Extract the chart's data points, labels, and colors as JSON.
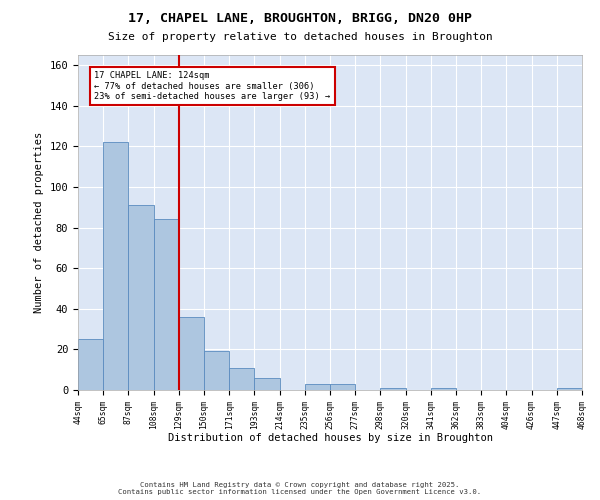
{
  "title_line1": "17, CHAPEL LANE, BROUGHTON, BRIGG, DN20 0HP",
  "title_line2": "Size of property relative to detached houses in Broughton",
  "xlabel": "Distribution of detached houses by size in Broughton",
  "ylabel": "Number of detached properties",
  "bin_labels": [
    "44sqm",
    "65sqm",
    "87sqm",
    "108sqm",
    "129sqm",
    "150sqm",
    "171sqm",
    "193sqm",
    "214sqm",
    "235sqm",
    "256sqm",
    "277sqm",
    "298sqm",
    "320sqm",
    "341sqm",
    "362sqm",
    "383sqm",
    "404sqm",
    "426sqm",
    "447sqm",
    "468sqm"
  ],
  "values": [
    25,
    122,
    91,
    84,
    36,
    19,
    11,
    6,
    0,
    3,
    3,
    0,
    1,
    0,
    1,
    0,
    0,
    0,
    0,
    1
  ],
  "bar_color": "#adc6e0",
  "bar_edge_color": "#5a8bbf",
  "vline_color": "#cc0000",
  "annotation_text": "17 CHAPEL LANE: 124sqm\n← 77% of detached houses are smaller (306)\n23% of semi-detached houses are larger (93) →",
  "annotation_box_color": "#cc0000",
  "ylim": [
    0,
    165
  ],
  "yticks": [
    0,
    20,
    40,
    60,
    80,
    100,
    120,
    140,
    160
  ],
  "background_color": "#dce6f5",
  "grid_color": "#ffffff",
  "footer_line1": "Contains HM Land Registry data © Crown copyright and database right 2025.",
  "footer_line2": "Contains public sector information licensed under the Open Government Licence v3.0."
}
